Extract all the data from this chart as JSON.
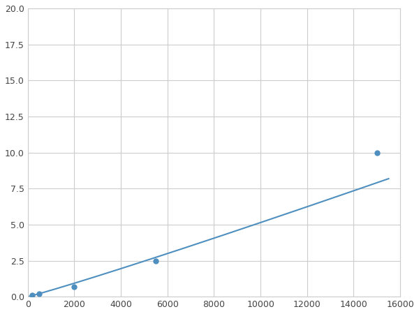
{
  "x_points": [
    200,
    500,
    2000,
    5500,
    15000
  ],
  "y_points": [
    0.1,
    0.2,
    0.7,
    2.5,
    10.0
  ],
  "line_color": "#4f8fbf",
  "marker_color": "#4f8fbf",
  "marker_size": 5,
  "xlim": [
    0,
    16000
  ],
  "ylim": [
    0,
    20.0
  ],
  "xticks": [
    0,
    2000,
    4000,
    6000,
    8000,
    10000,
    12000,
    14000,
    16000
  ],
  "yticks": [
    0.0,
    2.5,
    5.0,
    7.5,
    10.0,
    12.5,
    15.0,
    17.5,
    20.0
  ],
  "grid_color": "#cccccc",
  "background_color": "#ffffff",
  "figure_bg": "#ffffff"
}
